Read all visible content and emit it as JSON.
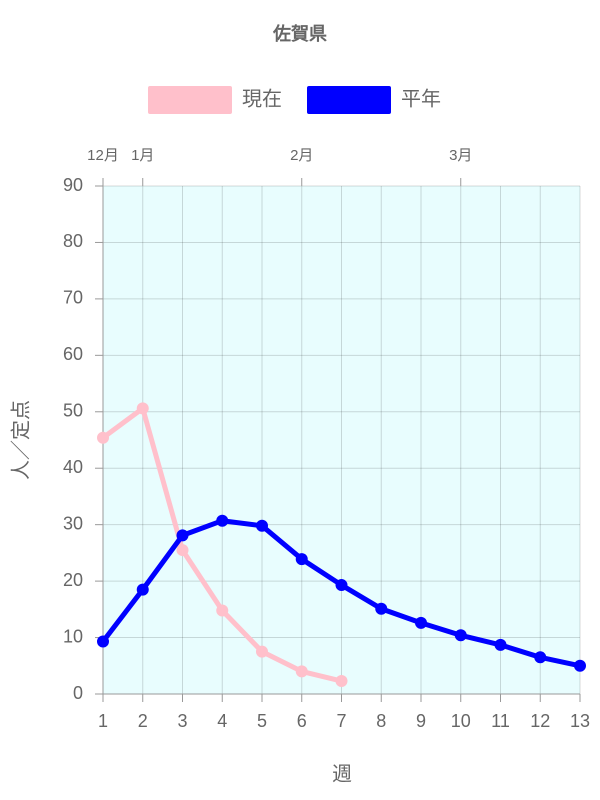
{
  "chart_data": {
    "type": "line",
    "title": "佐賀県",
    "x": [
      1,
      2,
      3,
      4,
      5,
      6,
      7,
      8,
      9,
      10,
      11,
      12,
      13
    ],
    "xlabel": "週",
    "ylabel": "人／定点",
    "xlim": [
      1,
      13
    ],
    "xticks": [
      1,
      2,
      3,
      4,
      5,
      6,
      7,
      8,
      9,
      10,
      11,
      12,
      13
    ],
    "x2ticks": [
      {
        "value": 1,
        "label": "12月"
      },
      {
        "value": 2,
        "label": "1月"
      },
      {
        "value": 6,
        "label": "2月"
      },
      {
        "value": 10,
        "label": "3月"
      }
    ],
    "ylim": [
      0,
      90
    ],
    "yticks": [
      0,
      10,
      20,
      30,
      40,
      50,
      60,
      70,
      80,
      90
    ],
    "grid": true,
    "legend": "top",
    "background": "#e8fdfe",
    "series": [
      {
        "name": "現在",
        "color": "#ffc0cb",
        "values": [
          45.4,
          50.6,
          25.5,
          14.8,
          7.5,
          4.0,
          2.3,
          null,
          null,
          null,
          null,
          null,
          null
        ]
      },
      {
        "name": "平年",
        "color": "#0000ff",
        "values": [
          9.3,
          18.5,
          28.1,
          30.7,
          29.8,
          23.9,
          19.3,
          15.1,
          12.6,
          10.4,
          8.7,
          6.5,
          5.0
        ]
      }
    ]
  }
}
